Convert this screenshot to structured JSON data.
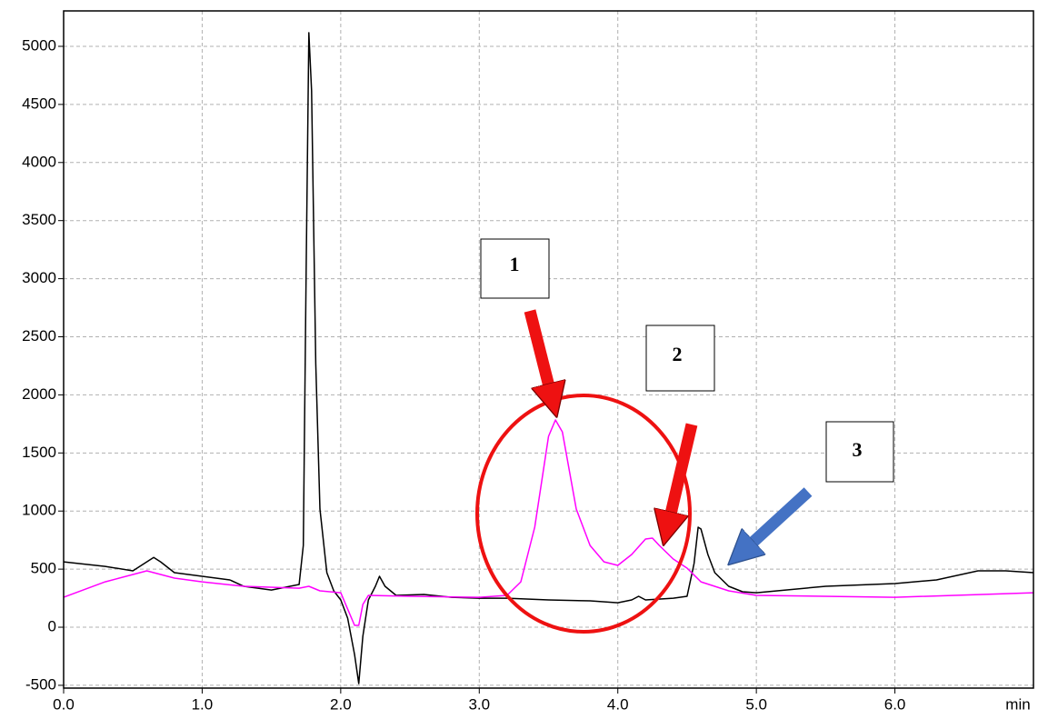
{
  "chart_data": {
    "type": "line",
    "x_label": "min",
    "annotations": [
      "1",
      "2",
      "3"
    ],
    "xlim": [
      0,
      7.0
    ],
    "ylim": [
      -524,
      5305
    ],
    "xticks": [
      {
        "value": 0,
        "label": "0.0"
      },
      {
        "value": 1,
        "label": "1.0"
      },
      {
        "value": 2,
        "label": "2.0"
      },
      {
        "value": 3,
        "label": "3.0"
      },
      {
        "value": 4,
        "label": "4.0"
      },
      {
        "value": 5,
        "label": "5.0"
      },
      {
        "value": 6,
        "label": "6.0"
      }
    ],
    "yticks": [
      -500,
      0,
      500,
      1000,
      1500,
      2000,
      2500,
      3000,
      3500,
      4000,
      4500,
      5000
    ],
    "grid": true,
    "series": [
      {
        "color": "#000000",
        "x": [
          0.0,
          0.3,
          0.5,
          0.6,
          0.65,
          0.7,
          0.8,
          1.0,
          1.2,
          1.3,
          1.5,
          1.7,
          1.73,
          1.75,
          1.77,
          1.79,
          1.82,
          1.85,
          1.9,
          1.95,
          2.0,
          2.05,
          2.1,
          2.13,
          2.16,
          2.2,
          2.25,
          2.28,
          2.32,
          2.4,
          2.6,
          2.8,
          3.0,
          3.2,
          3.5,
          3.8,
          4.0,
          4.1,
          4.15,
          4.2,
          4.4,
          4.5,
          4.55,
          4.58,
          4.6,
          4.65,
          4.7,
          4.8,
          4.9,
          5.0,
          5.5,
          6.0,
          6.3,
          6.6,
          6.8,
          7.0
        ],
        "values": [
          563,
          524,
          485,
          563,
          600,
          563,
          470,
          438,
          407,
          352,
          320,
          368,
          704,
          3050,
          5117,
          4617,
          2270,
          1017,
          470,
          313,
          235,
          78,
          -235,
          -485,
          -78,
          235,
          352,
          438,
          352,
          274,
          282,
          258,
          250,
          250,
          235,
          227,
          211,
          235,
          266,
          235,
          250,
          266,
          548,
          861,
          845,
          626,
          470,
          352,
          305,
          297,
          352,
          376,
          407,
          485,
          485,
          470
        ]
      },
      {
        "color": "#ff00ff",
        "x": [
          0.0,
          0.3,
          0.6,
          0.8,
          1.0,
          1.3,
          1.7,
          1.77,
          1.85,
          2.0,
          2.05,
          2.1,
          2.13,
          2.16,
          2.2,
          2.5,
          3.0,
          3.2,
          3.3,
          3.4,
          3.5,
          3.55,
          3.6,
          3.7,
          3.8,
          3.9,
          4.0,
          4.1,
          4.2,
          4.25,
          4.3,
          4.4,
          4.5,
          4.6,
          4.8,
          5.0,
          6.0,
          7.0
        ],
        "values": [
          258,
          391,
          485,
          423,
          391,
          352,
          336,
          352,
          313,
          297,
          156,
          16,
          16,
          196,
          274,
          266,
          258,
          274,
          391,
          861,
          1643,
          1784,
          1682,
          1017,
          704,
          563,
          532,
          626,
          759,
          767,
          704,
          587,
          509,
          391,
          313,
          274,
          258,
          297
        ]
      }
    ]
  }
}
